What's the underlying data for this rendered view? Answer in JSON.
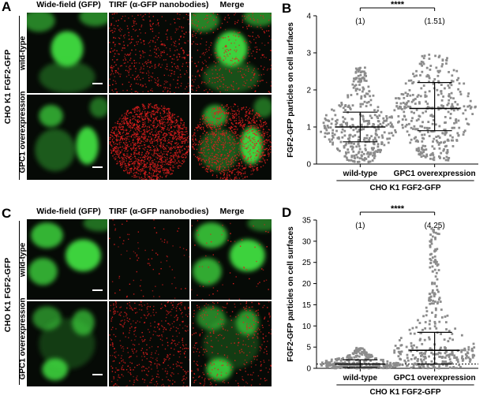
{
  "panels": {
    "A": {
      "letter": "A",
      "columns": [
        "Wide-field (GFP)",
        "TIRF (α-GFP nanobodies)",
        "Merge"
      ],
      "rows": [
        "wild-type",
        "GPC1 overexpression"
      ],
      "side_label": "CHO K1 FGF2-GFP"
    },
    "C": {
      "letter": "C",
      "columns": [
        "Wide-field (GFP)",
        "TIRF (α-GFP nanobodies)",
        "Merge"
      ],
      "rows": [
        "wild-type",
        "GPC1 overexpression"
      ],
      "side_label": "CHO K1 FGF2-GFP"
    }
  },
  "chart_data": [
    {
      "letter": "B",
      "type": "scatter",
      "ylabel": "FGF2-GFP particles on cell surfaces",
      "ylim": [
        0,
        4
      ],
      "yticks": [
        0,
        1,
        2,
        3,
        4
      ],
      "categories": [
        "wild-type",
        "GPC1 overexpression"
      ],
      "group_label": "CHO K1 FGF2-GFP",
      "fold_changes": [
        "(1)",
        "(1.51)"
      ],
      "significance": "****",
      "series": [
        {
          "values_min": 0.05,
          "values_max": 2.6,
          "mean": 1.0,
          "sd_low": 0.6,
          "sd_high": 1.4,
          "n": 360
        },
        {
          "values_min": 0.1,
          "values_max": 2.95,
          "mean": 1.5,
          "sd_low": 0.9,
          "sd_high": 2.2,
          "n": 360
        }
      ],
      "grid": false
    },
    {
      "letter": "D",
      "type": "scatter",
      "ylabel": "FGF2-GFP particles on cell surfaces",
      "ylim": [
        0,
        35
      ],
      "yticks": [
        0,
        5,
        10,
        15,
        20,
        25,
        30,
        35
      ],
      "categories": [
        "wild-type",
        "GPC1 overexpression"
      ],
      "group_label": "CHO K1 FGF2-GFP",
      "fold_changes": [
        "(1)",
        "(4.25)"
      ],
      "significance": "****",
      "reference_line": 1,
      "series": [
        {
          "values_min": 0.0,
          "values_max": 4.8,
          "mean": 1.0,
          "sd_low": 0.2,
          "sd_high": 2.0,
          "n": 300
        },
        {
          "values_min": 0.0,
          "values_max": 33.0,
          "mean": 4.25,
          "sd_low": 1.0,
          "sd_high": 8.5,
          "n": 330
        }
      ],
      "grid": false
    }
  ],
  "colors": {
    "gfp": "#3cd23c",
    "tirf": "#e01e1e",
    "marker": "#8c8c8c",
    "background": "#060a06"
  }
}
